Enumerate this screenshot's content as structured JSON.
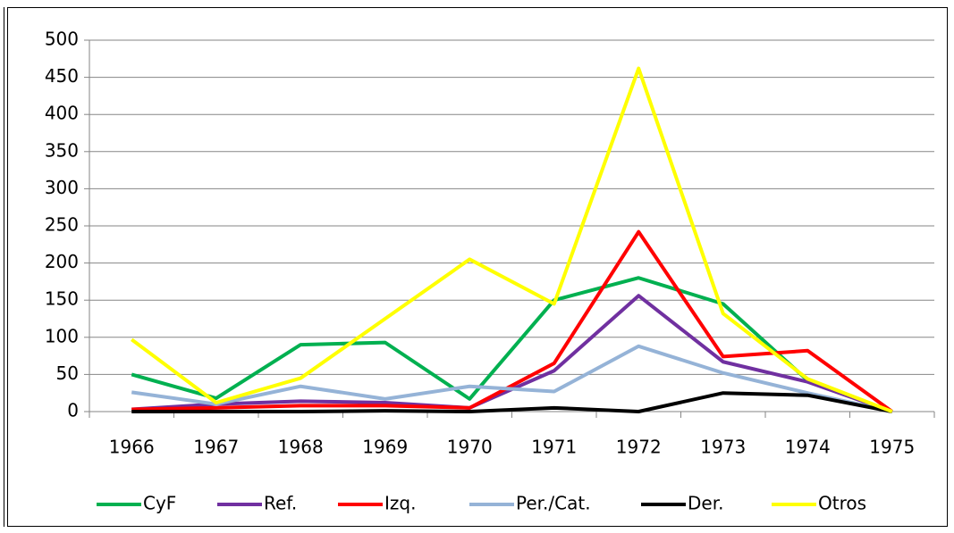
{
  "chart_data": {
    "type": "line",
    "categories": [
      "1966",
      "1967",
      "1968",
      "1969",
      "1970",
      "1971",
      "1972",
      "1973",
      "1974",
      "1975"
    ],
    "series": [
      {
        "name": "CyF",
        "color": "#00b050",
        "values": [
          50,
          18,
          90,
          93,
          17,
          150,
          180,
          145,
          42,
          0
        ]
      },
      {
        "name": "Ref.",
        "color": "#7030a0",
        "values": [
          3,
          10,
          14,
          12,
          5,
          55,
          156,
          67,
          40,
          0
        ]
      },
      {
        "name": "Izq.",
        "color": "#ff0000",
        "values": [
          3,
          5,
          8,
          8,
          5,
          65,
          242,
          74,
          82,
          0
        ]
      },
      {
        "name": "Per./Cat.",
        "color": "#95b3d7",
        "values": [
          26,
          10,
          34,
          17,
          34,
          27,
          88,
          52,
          25,
          0
        ]
      },
      {
        "name": "Der.",
        "color": "#000000",
        "values": [
          0,
          0,
          0,
          1,
          0,
          5,
          0,
          25,
          22,
          0
        ]
      },
      {
        "name": "Otros",
        "color": "#ffff00",
        "values": [
          97,
          12,
          45,
          125,
          205,
          145,
          462,
          132,
          44,
          0
        ]
      }
    ],
    "ylim": [
      0,
      500
    ],
    "yticks": [
      0,
      50,
      100,
      150,
      200,
      250,
      300,
      350,
      400,
      450,
      500
    ],
    "grid": true,
    "legend": "bottom"
  }
}
